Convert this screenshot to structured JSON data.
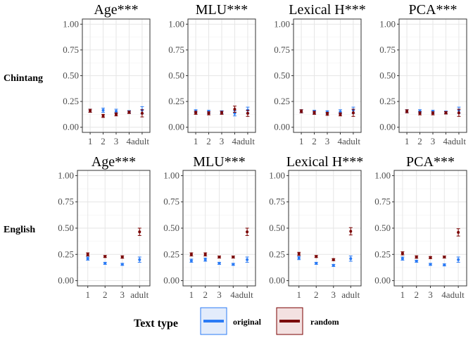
{
  "chart_data": {
    "type": "scatter",
    "ylim": [
      -0.05,
      1.05
    ],
    "yticks": [
      "0.00",
      "0.25",
      "0.50",
      "0.75",
      "1.00"
    ],
    "yticks_values": [
      0,
      0.25,
      0.5,
      0.75,
      1.0
    ],
    "grid": true,
    "legend": {
      "title": "Text type",
      "placement": "bottom",
      "entries": [
        {
          "label": "original",
          "color": "#2B7BF5"
        },
        {
          "label": "random",
          "color": "#7A0000"
        }
      ]
    },
    "rows": [
      {
        "label": "Chintang",
        "panels": [
          {
            "title": "Age***",
            "x": [
              "1",
              "2",
              "3",
              "4",
              "adult"
            ],
            "xticks": [
              "1",
              "2",
              "3",
              "4adult"
            ],
            "series": [
              {
                "name": "original",
                "points": [
                  [
                    1,
                    0.16,
                    0.015
                  ],
                  [
                    2,
                    0.165,
                    0.02
                  ],
                  [
                    3,
                    0.155,
                    0.02
                  ],
                  [
                    4,
                    0.15,
                    0.012
                  ],
                  [
                    5,
                    0.165,
                    0.035
                  ]
                ]
              },
              {
                "name": "random",
                "points": [
                  [
                    1,
                    0.16,
                    0.015
                  ],
                  [
                    2,
                    0.11,
                    0.015
                  ],
                  [
                    3,
                    0.125,
                    0.015
                  ],
                  [
                    4,
                    0.145,
                    0.012
                  ],
                  [
                    5,
                    0.135,
                    0.035
                  ]
                ]
              }
            ]
          },
          {
            "title": "MLU***",
            "x": [
              "1",
              "2",
              "3",
              "4",
              "adult"
            ],
            "xticks": [
              "1",
              "2",
              "3",
              "4adult"
            ],
            "series": [
              {
                "name": "original",
                "points": [
                  [
                    1,
                    0.155,
                    0.015
                  ],
                  [
                    2,
                    0.15,
                    0.015
                  ],
                  [
                    3,
                    0.145,
                    0.015
                  ],
                  [
                    4,
                    0.135,
                    0.025
                  ],
                  [
                    5,
                    0.165,
                    0.03
                  ]
                ]
              },
              {
                "name": "random",
                "points": [
                  [
                    1,
                    0.14,
                    0.015
                  ],
                  [
                    2,
                    0.135,
                    0.015
                  ],
                  [
                    3,
                    0.14,
                    0.015
                  ],
                  [
                    4,
                    0.175,
                    0.03
                  ],
                  [
                    5,
                    0.135,
                    0.03
                  ]
                ]
              }
            ]
          },
          {
            "title": "Lexical H***",
            "x": [
              "1",
              "2",
              "3",
              "4",
              "adult"
            ],
            "xticks": [
              "1",
              "2",
              "3",
              "4adult"
            ],
            "series": [
              {
                "name": "original",
                "points": [
                  [
                    1,
                    0.155,
                    0.015
                  ],
                  [
                    2,
                    0.15,
                    0.015
                  ],
                  [
                    3,
                    0.145,
                    0.015
                  ],
                  [
                    4,
                    0.15,
                    0.02
                  ],
                  [
                    5,
                    0.165,
                    0.03
                  ]
                ]
              },
              {
                "name": "random",
                "points": [
                  [
                    1,
                    0.155,
                    0.015
                  ],
                  [
                    2,
                    0.14,
                    0.015
                  ],
                  [
                    3,
                    0.13,
                    0.015
                  ],
                  [
                    4,
                    0.125,
                    0.015
                  ],
                  [
                    5,
                    0.14,
                    0.035
                  ]
                ]
              }
            ]
          },
          {
            "title": "PCA***",
            "x": [
              "1",
              "2",
              "3",
              "4",
              "adult"
            ],
            "xticks": [
              "1",
              "2",
              "3",
              "4adult"
            ],
            "series": [
              {
                "name": "original",
                "points": [
                  [
                    1,
                    0.155,
                    0.015
                  ],
                  [
                    2,
                    0.155,
                    0.015
                  ],
                  [
                    3,
                    0.15,
                    0.015
                  ],
                  [
                    4,
                    0.145,
                    0.012
                  ],
                  [
                    5,
                    0.165,
                    0.03
                  ]
                ]
              },
              {
                "name": "random",
                "points": [
                  [
                    1,
                    0.155,
                    0.015
                  ],
                  [
                    2,
                    0.135,
                    0.015
                  ],
                  [
                    3,
                    0.135,
                    0.015
                  ],
                  [
                    4,
                    0.14,
                    0.012
                  ],
                  [
                    5,
                    0.14,
                    0.035
                  ]
                ]
              }
            ]
          }
        ]
      },
      {
        "label": "English",
        "panels": [
          {
            "title": "Age***",
            "x": [
              "1",
              "2",
              "3",
              "adult"
            ],
            "xticks": [
              "1",
              "2",
              "3",
              "adult"
            ],
            "series": [
              {
                "name": "original",
                "points": [
                  [
                    1,
                    0.21,
                    0.015
                  ],
                  [
                    2,
                    0.165,
                    0.01
                  ],
                  [
                    3,
                    0.155,
                    0.01
                  ],
                  [
                    4,
                    0.2,
                    0.025
                  ]
                ]
              },
              {
                "name": "random",
                "points": [
                  [
                    1,
                    0.25,
                    0.015
                  ],
                  [
                    2,
                    0.23,
                    0.01
                  ],
                  [
                    3,
                    0.225,
                    0.012
                  ],
                  [
                    4,
                    0.465,
                    0.035
                  ]
                ]
              }
            ]
          },
          {
            "title": "MLU***",
            "x": [
              "1",
              "2",
              "3",
              "4",
              "adult"
            ],
            "xticks": [
              "1",
              "2",
              "3",
              "4adult"
            ],
            "series": [
              {
                "name": "original",
                "points": [
                  [
                    1,
                    0.19,
                    0.015
                  ],
                  [
                    2,
                    0.2,
                    0.015
                  ],
                  [
                    3,
                    0.165,
                    0.01
                  ],
                  [
                    4,
                    0.155,
                    0.01
                  ],
                  [
                    5,
                    0.2,
                    0.025
                  ]
                ]
              },
              {
                "name": "random",
                "points": [
                  [
                    1,
                    0.25,
                    0.015
                  ],
                  [
                    2,
                    0.25,
                    0.015
                  ],
                  [
                    3,
                    0.225,
                    0.01
                  ],
                  [
                    4,
                    0.225,
                    0.01
                  ],
                  [
                    5,
                    0.465,
                    0.035
                  ]
                ]
              }
            ]
          },
          {
            "title": "Lexical H***",
            "x": [
              "1",
              "2",
              "3",
              "adult"
            ],
            "xticks": [
              "1",
              "2",
              "3",
              "adult"
            ],
            "series": [
              {
                "name": "original",
                "points": [
                  [
                    1,
                    0.215,
                    0.015
                  ],
                  [
                    2,
                    0.165,
                    0.01
                  ],
                  [
                    3,
                    0.145,
                    0.01
                  ],
                  [
                    4,
                    0.21,
                    0.025
                  ]
                ]
              },
              {
                "name": "random",
                "points": [
                  [
                    1,
                    0.255,
                    0.015
                  ],
                  [
                    2,
                    0.23,
                    0.01
                  ],
                  [
                    3,
                    0.2,
                    0.01
                  ],
                  [
                    4,
                    0.47,
                    0.035
                  ]
                ]
              }
            ]
          },
          {
            "title": "PCA***",
            "x": [
              "1",
              "2",
              "3",
              "4",
              "adult"
            ],
            "xticks": [
              "1",
              "2",
              "3",
              "4adult"
            ],
            "series": [
              {
                "name": "original",
                "points": [
                  [
                    1,
                    0.21,
                    0.015
                  ],
                  [
                    2,
                    0.185,
                    0.01
                  ],
                  [
                    3,
                    0.155,
                    0.01
                  ],
                  [
                    4,
                    0.15,
                    0.01
                  ],
                  [
                    5,
                    0.2,
                    0.025
                  ]
                ]
              },
              {
                "name": "random",
                "points": [
                  [
                    1,
                    0.26,
                    0.015
                  ],
                  [
                    2,
                    0.225,
                    0.012
                  ],
                  [
                    3,
                    0.22,
                    0.01
                  ],
                  [
                    4,
                    0.225,
                    0.01
                  ],
                  [
                    5,
                    0.46,
                    0.035
                  ]
                ]
              }
            ]
          }
        ]
      }
    ]
  }
}
